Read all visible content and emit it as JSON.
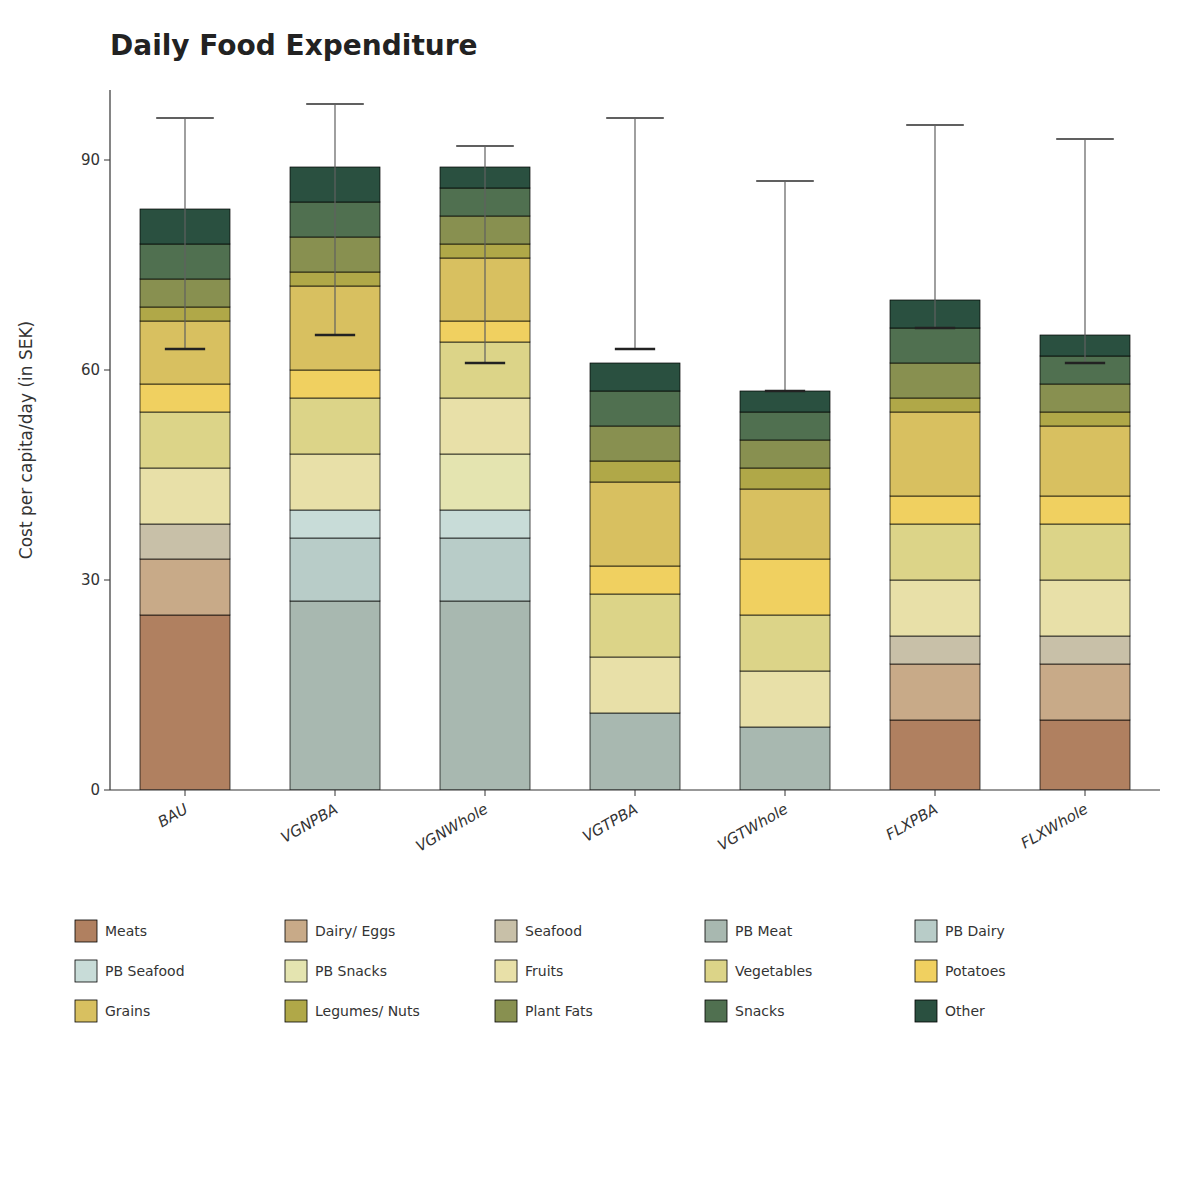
{
  "chart_data": {
    "type": "bar",
    "stacked": true,
    "title": "Daily Food Expenditure",
    "ylabel": "Cost per capita/day (in SEK)",
    "categories": [
      "BAU",
      "VGNPBA",
      "VGNWhole",
      "VGTPBA",
      "VGTWhole",
      "FLXPBA",
      "FLXWhole"
    ],
    "ylim": [
      0,
      100
    ],
    "yticks": [
      0,
      30,
      60,
      90
    ],
    "grid": false,
    "legend": "bottom",
    "series": [
      {
        "name": "Meats",
        "color": "#b08060",
        "values": [
          25,
          0,
          0,
          0,
          0,
          10,
          10
        ]
      },
      {
        "name": "Dairy/ Eggs",
        "color": "#c8aa88",
        "values": [
          8,
          0,
          0,
          0,
          0,
          8,
          8
        ]
      },
      {
        "name": "Seafood",
        "color": "#c8c0a8",
        "values": [
          5,
          0,
          0,
          0,
          0,
          4,
          4
        ]
      },
      {
        "name": "PB Meat",
        "color": "#a8b8b0",
        "values": [
          0,
          27,
          27,
          11,
          9,
          0,
          0
        ]
      },
      {
        "name": "PB Dairy",
        "color": "#b8ccc8",
        "values": [
          0,
          9,
          9,
          0,
          0,
          0,
          0
        ]
      },
      {
        "name": "PB Seafood",
        "color": "#c8dcd8",
        "values": [
          0,
          4,
          4,
          0,
          0,
          0,
          0
        ]
      },
      {
        "name": "PB Snacks",
        "color": "#e4e4b0",
        "values": [
          0,
          0,
          8,
          0,
          0,
          0,
          0
        ]
      },
      {
        "name": "Fruits",
        "color": "#e8e0a8",
        "values": [
          8,
          8,
          8,
          8,
          8,
          8,
          8
        ]
      },
      {
        "name": "Vegetables",
        "color": "#dcd488",
        "values": [
          8,
          8,
          8,
          9,
          8,
          8,
          8
        ]
      },
      {
        "name": "Potatoes",
        "color": "#f0d060",
        "values": [
          4,
          4,
          3,
          4,
          8,
          4,
          4
        ]
      },
      {
        "name": "Grains",
        "color": "#d8c060",
        "values": [
          9,
          12,
          9,
          12,
          10,
          12,
          10
        ]
      },
      {
        "name": "Legumes/ Nuts",
        "color": "#b0a848",
        "values": [
          2,
          2,
          2,
          3,
          3,
          2,
          2
        ]
      },
      {
        "name": "Plant Fats",
        "color": "#889050",
        "values": [
          4,
          5,
          4,
          5,
          4,
          5,
          4
        ]
      },
      {
        "name": "Snacks",
        "color": "#507050",
        "values": [
          5,
          5,
          4,
          5,
          4,
          5,
          4
        ]
      },
      {
        "name": "Other",
        "color": "#2a5040",
        "values": [
          5,
          5,
          3,
          4,
          3,
          4,
          3
        ]
      }
    ],
    "error_bars": {
      "means": [
        63,
        65,
        61,
        63,
        57,
        66,
        61
      ],
      "upper": [
        96,
        98,
        92,
        96,
        87,
        95,
        93
      ]
    }
  }
}
